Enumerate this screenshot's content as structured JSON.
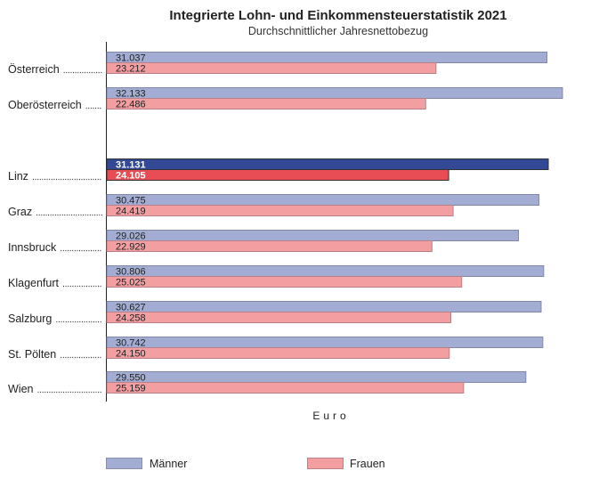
{
  "chart_data": {
    "type": "bar",
    "orientation": "horizontal",
    "title": "Integrierte Lohn- und Einkommensteuerstatistik 2021",
    "subtitle": "Durchschnittlicher Jahresnettobezug",
    "xlabel": "Euro",
    "ylabel": "",
    "xlim": [
      0,
      32500
    ],
    "grid": false,
    "legend_position": "bottom",
    "categories": [
      "Österreich",
      "Oberösterreich",
      "Linz",
      "Graz",
      "Innsbruck",
      "Klagenfurt",
      "Salzburg",
      "St. Pölten",
      "Wien"
    ],
    "highlighted_category": "Linz",
    "series": [
      {
        "name": "Männer",
        "color": "#a3acd3",
        "highlight_color": "#334996",
        "values": [
          31037,
          32133,
          31131,
          30475,
          29026,
          30806,
          30627,
          30742,
          29550
        ],
        "labels": [
          "31.037",
          "32.133",
          "31.131",
          "30.475",
          "29.026",
          "30.806",
          "30.627",
          "30.742",
          "29.550"
        ]
      },
      {
        "name": "Frauen",
        "color": "#f39ea1",
        "highlight_color": "#e84d55",
        "values": [
          23212,
          22486,
          24105,
          24419,
          22929,
          25025,
          24258,
          24150,
          25159
        ],
        "labels": [
          "23.212",
          "22.486",
          "24.105",
          "24.419",
          "22.929",
          "25.025",
          "24.258",
          "24.150",
          "25.159"
        ]
      }
    ]
  }
}
